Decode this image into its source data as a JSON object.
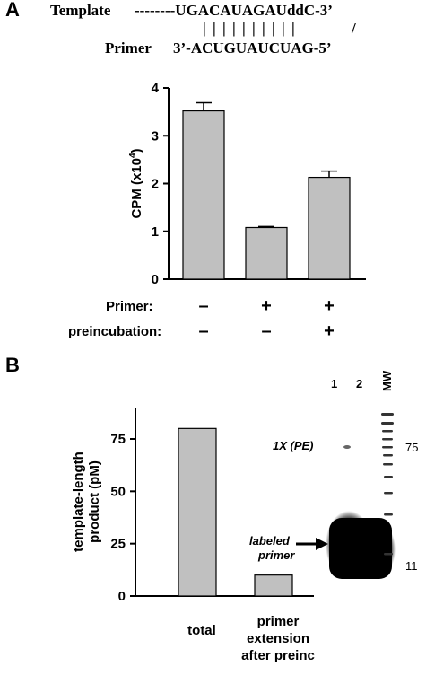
{
  "panel_a": {
    "letter": "A",
    "template_label": "Template",
    "template_seq": "--------UGACAUAGAUddC-3’",
    "pairing_marks": "| | | | | | | | | |",
    "slash": "/",
    "primer_label": "Primer",
    "primer_seq": "3’-ACUGUAUCUAG-5’",
    "rows": [
      {
        "label": "Primer:",
        "signs": [
          "–",
          "+",
          "+"
        ]
      },
      {
        "label": "preincubation:",
        "signs": [
          "–",
          "–",
          "+"
        ]
      }
    ]
  },
  "panel_b": {
    "letter": "B",
    "gel": {
      "lanes": [
        "1",
        "2",
        "MW"
      ],
      "band_label": "1X (PE)",
      "primer_label_line1": "labeled",
      "primer_label_line2": "primer",
      "markers": [
        "75",
        "11"
      ]
    }
  },
  "chart_data": [
    {
      "type": "bar",
      "categories": [
        "",
        "",
        ""
      ],
      "values": [
        3.52,
        1.08,
        2.13
      ],
      "errors": [
        0.17,
        0.02,
        0.13
      ],
      "ylabel": "CPM (x10⁴)",
      "ylabel_main": "CPM (x10",
      "ylabel_sup": "4",
      "ylabel_close": ")",
      "ylim": [
        0,
        4
      ],
      "yticks": [
        0,
        1,
        2,
        3,
        4
      ],
      "bar_color": "#c0c0c0"
    },
    {
      "type": "bar",
      "categories": [
        "total",
        "primer extension after preinc"
      ],
      "category_lines": [
        [
          "total"
        ],
        [
          "primer",
          "extension",
          "after preinc"
        ]
      ],
      "values": [
        80,
        10
      ],
      "ylabel": "template-length product (pM)",
      "ylabel_lines": [
        "template-length",
        "product (pM)"
      ],
      "ylim": [
        0,
        90
      ],
      "yticks": [
        0,
        25,
        50,
        75
      ],
      "bar_color": "#c0c0c0"
    }
  ]
}
